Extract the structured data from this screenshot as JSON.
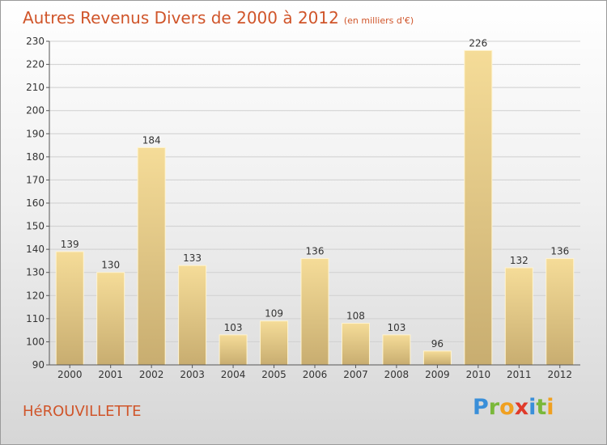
{
  "header": {
    "title": "Autres Revenus Divers de 2000 à 2012",
    "subtitle": "(en milliers d'€)"
  },
  "footer": {
    "commune": "HéROUVILLETTE",
    "logo_letters": [
      {
        "ch": "P",
        "color": "#3a8fd9"
      },
      {
        "ch": "r",
        "color": "#7ab83a"
      },
      {
        "ch": "o",
        "color": "#f0a020"
      },
      {
        "ch": "x",
        "color": "#e03a2a"
      },
      {
        "ch": "i",
        "color": "#3a8fd9"
      },
      {
        "ch": "t",
        "color": "#7ab83a"
      },
      {
        "ch": "i",
        "color": "#f0a020"
      }
    ]
  },
  "chart_data": {
    "type": "bar",
    "title": "Autres Revenus Divers de 2000 à 2012",
    "subtitle": "(en milliers d'€)",
    "categories": [
      "2000",
      "2001",
      "2002",
      "2003",
      "2004",
      "2005",
      "2006",
      "2007",
      "2008",
      "2009",
      "2010",
      "2011",
      "2012"
    ],
    "values": [
      139,
      130,
      184,
      133,
      103,
      109,
      136,
      108,
      103,
      96,
      226,
      132,
      136
    ],
    "ylim": [
      90,
      230
    ],
    "yticks": [
      90,
      100,
      110,
      120,
      130,
      140,
      150,
      160,
      170,
      180,
      190,
      200,
      210,
      220,
      230
    ],
    "grid": true,
    "colors": {
      "bar_light": "#f5dc98",
      "bar_dark": "#c8ad70",
      "grid": "#cfcfcf",
      "axis": "#555555",
      "text": "#333333",
      "accent": "#d0552a"
    }
  }
}
